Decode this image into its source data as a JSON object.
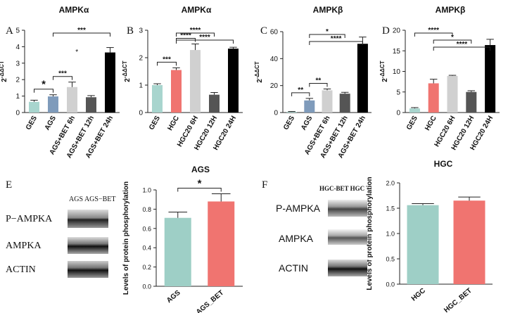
{
  "chart_data": [
    {
      "panel": "A",
      "type": "bar",
      "title": "AMPKα",
      "ylabel": "2^-ΔΔCT",
      "ylim": [
        0,
        5
      ],
      "yticks": [
        0,
        1,
        2,
        3,
        4,
        5
      ],
      "categories": [
        "GES",
        "AGS",
        "AGS+BET 6h",
        "AGS+BET 12h",
        "AGS+BET 24h"
      ],
      "values": [
        0.65,
        0.98,
        1.55,
        0.93,
        3.65
      ],
      "errors": [
        0.1,
        0.1,
        0.3,
        0.1,
        0.3
      ],
      "colors": [
        "#a8d5ce",
        "#7f9bbb",
        "#d0d0d0",
        "#555555",
        "#000000"
      ],
      "annotations": [
        {
          "from": 0,
          "to": 1,
          "label": "*"
        },
        {
          "from": 1,
          "to": 2,
          "label": "***"
        },
        {
          "from": 1,
          "to": 4,
          "label": "***"
        },
        {
          "label": "*"
        }
      ]
    },
    {
      "panel": "B",
      "type": "bar",
      "title": "AMPKα",
      "ylabel": "2^-ΔΔCT",
      "ylim": [
        0,
        3
      ],
      "yticks": [
        0,
        1,
        2,
        3
      ],
      "categories": [
        "GES",
        "HGC",
        "HGC20 6H",
        "HGC20 12H",
        "HGC20 24H"
      ],
      "values": [
        1.0,
        1.55,
        2.28,
        0.65,
        2.33
      ],
      "errors": [
        0.05,
        0.08,
        0.22,
        0.08,
        0.05
      ],
      "colors": [
        "#a8d5ce",
        "#f07470",
        "#d0d0d0",
        "#555555",
        "#000000"
      ],
      "annotations": [
        {
          "from": 0,
          "to": 1,
          "label": "***"
        },
        {
          "from": 1,
          "to": 2,
          "label": "****"
        },
        {
          "from": 1,
          "to": 3,
          "label": "****"
        },
        {
          "from": 1,
          "to": 4,
          "label": "****"
        }
      ]
    },
    {
      "panel": "C",
      "type": "bar",
      "title": "AMPKβ",
      "ylabel": "2^-ΔΔCT",
      "ylim": [
        0,
        60
      ],
      "yticks": [
        0,
        20,
        40,
        60
      ],
      "categories": [
        "GES",
        "AGS",
        "AGS+BET 6h",
        "AGS+BET 12h",
        "AGS+BET 24h"
      ],
      "values": [
        0.5,
        9,
        16.5,
        14,
        51
      ],
      "errors": [
        0.3,
        1.5,
        1,
        1,
        5
      ],
      "colors": [
        "#a8d5ce",
        "#7f9bbb",
        "#d0d0d0",
        "#555555",
        "#000000"
      ],
      "annotations": [
        {
          "from": 0,
          "to": 1,
          "label": "**"
        },
        {
          "from": 1,
          "to": 2,
          "label": "**"
        },
        {
          "from": 1,
          "to": 3,
          "label": "*"
        },
        {
          "from": 1,
          "to": 4,
          "label": "****"
        }
      ]
    },
    {
      "panel": "D",
      "type": "bar",
      "title": "AMPKβ",
      "ylabel": "2^-ΔΔCT",
      "ylim": [
        0,
        20
      ],
      "yticks": [
        0,
        5,
        10,
        15,
        20
      ],
      "categories": [
        "GES",
        "HGC",
        "HGC20 6H",
        "HGC20 12H",
        "HGC20 24H"
      ],
      "values": [
        1.0,
        7.1,
        8.9,
        5.0,
        16.4
      ],
      "errors": [
        0.2,
        1.0,
        0.15,
        0.3,
        1.4
      ],
      "colors": [
        "#a8d5ce",
        "#f07470",
        "#d0d0d0",
        "#555555",
        "#000000"
      ],
      "annotations": [
        {
          "from": 0,
          "to": 2,
          "label": "****"
        },
        {
          "from": 1,
          "to": 3,
          "label": "*"
        },
        {
          "from": 1,
          "to": 4,
          "label": "****"
        }
      ]
    },
    {
      "panel": "E",
      "type": "bar",
      "title": "AGS",
      "ylabel": "Levels of protein phosphorylation",
      "ylim": [
        0,
        1.0
      ],
      "yticks": [
        0.0,
        0.2,
        0.4,
        0.6,
        0.8,
        1.0
      ],
      "categories": [
        "AGS",
        "AGS_BET"
      ],
      "values": [
        0.71,
        0.88
      ],
      "errors": [
        0.06,
        0.08
      ],
      "colors": [
        "#9ecfc6",
        "#f07470"
      ],
      "annotations": [
        {
          "from": 0,
          "to": 1,
          "label": "*"
        }
      ]
    },
    {
      "panel": "F",
      "type": "bar",
      "title": "HGC",
      "ylabel": "Levels of protein phosphorylation",
      "ylim": [
        0,
        2.0
      ],
      "yticks": [
        0.0,
        0.5,
        1.0,
        1.5,
        2.0
      ],
      "categories": [
        "HGC",
        "HGC_BET"
      ],
      "values": [
        1.56,
        1.65
      ],
      "errors": [
        0.03,
        0.07
      ],
      "colors": [
        "#9ecfc6",
        "#f07470"
      ],
      "annotations": []
    }
  ],
  "blots": {
    "E": {
      "header": "AGS AGS−BET",
      "rows": [
        "P−AMPKA",
        "AMPKA",
        "ACTIN"
      ]
    },
    "F": {
      "header": "HGC-BET HGC",
      "rows": [
        "P-AMPKA",
        "AMPKA",
        "ACTIN"
      ]
    }
  }
}
